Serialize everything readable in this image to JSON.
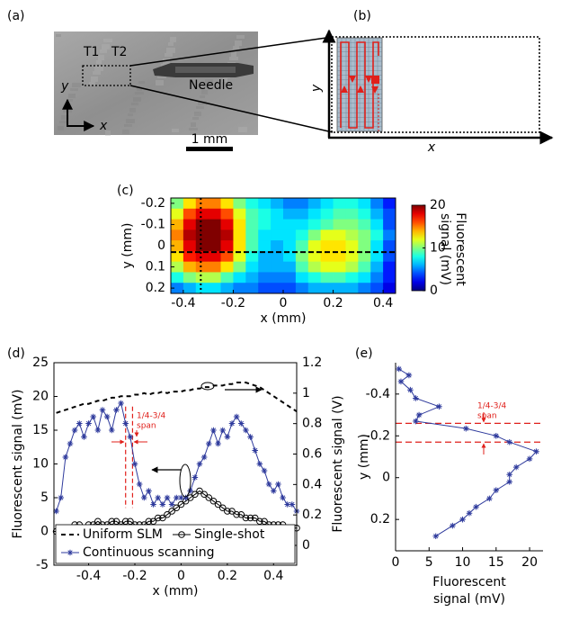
{
  "chart_data": [
    {
      "type": "image",
      "panel": "(a)",
      "labels": [
        "T1",
        "T2",
        "Needle",
        "y",
        "x"
      ],
      "scale_bar": "1 mm"
    },
    {
      "type": "diagram",
      "panel": "(b)",
      "xlabel": "x",
      "ylabel": "y"
    },
    {
      "type": "heatmap",
      "panel": "(c)",
      "xlabel": "x (mm)",
      "ylabel": "y (mm)",
      "x": [
        -0.425,
        -0.375,
        -0.325,
        -0.275,
        -0.225,
        -0.175,
        -0.125,
        -0.075,
        -0.025,
        0.025,
        0.075,
        0.125,
        0.175,
        0.225,
        0.275,
        0.325,
        0.375,
        0.425
      ],
      "y": [
        -0.2,
        -0.15,
        -0.1,
        -0.05,
        0,
        0.05,
        0.1,
        0.15,
        0.2
      ],
      "z": [
        [
          10,
          13,
          15,
          15,
          13,
          10,
          8,
          7,
          6,
          5,
          5,
          6,
          7,
          8,
          8,
          7,
          5,
          3
        ],
        [
          12,
          16,
          18,
          18,
          16,
          12,
          9,
          8,
          7,
          6,
          6,
          7,
          8,
          9,
          9,
          8,
          6,
          4
        ],
        [
          14,
          18,
          20,
          20,
          18,
          13,
          9,
          8,
          7,
          7,
          7,
          8,
          9,
          10,
          10,
          9,
          7,
          4
        ],
        [
          15,
          19,
          20,
          20,
          19,
          13,
          9,
          7,
          7,
          7,
          8,
          10,
          12,
          12,
          11,
          10,
          8,
          5
        ],
        [
          14,
          18,
          20,
          20,
          18,
          13,
          9,
          7,
          6,
          7,
          9,
          12,
          13,
          13,
          12,
          10,
          7,
          4
        ],
        [
          13,
          17,
          18,
          18,
          16,
          12,
          8,
          6,
          6,
          7,
          10,
          12,
          13,
          13,
          12,
          10,
          7,
          4
        ],
        [
          11,
          14,
          15,
          15,
          13,
          10,
          7,
          6,
          6,
          6,
          9,
          11,
          12,
          12,
          11,
          9,
          6,
          3
        ],
        [
          8,
          10,
          11,
          11,
          9,
          7,
          6,
          5,
          5,
          5,
          7,
          8,
          9,
          9,
          8,
          7,
          5,
          3
        ],
        [
          5,
          6,
          7,
          7,
          6,
          5,
          5,
          4,
          4,
          4,
          5,
          6,
          6,
          6,
          6,
          5,
          4,
          2
        ]
      ],
      "xlim": [
        -0.45,
        0.45
      ],
      "ylim": [
        -0.225,
        0.225
      ],
      "y_reversed": true,
      "xticks": [
        -0.4,
        -0.2,
        0,
        0.2,
        0.4
      ],
      "yticks": [
        -0.2,
        -0.1,
        0,
        0.1,
        0.2
      ],
      "colormap": "jet",
      "colorbar": {
        "label": [
          "Fluorescent",
          "signal (mV)"
        ],
        "lim": [
          0,
          20
        ],
        "ticks": [
          0,
          10,
          20
        ]
      },
      "crosshair": {
        "x": -0.33,
        "y": 0.03
      }
    },
    {
      "type": "line",
      "panel": "(d)",
      "xlabel": "x (mm)",
      "ylabel": "Fluorescent signal (mV)",
      "y2label": "Fluorescent signal (V)",
      "x": [
        -0.54,
        -0.52,
        -0.5,
        -0.48,
        -0.46,
        -0.44,
        -0.42,
        -0.4,
        -0.38,
        -0.36,
        -0.34,
        -0.32,
        -0.3,
        -0.28,
        -0.26,
        -0.24,
        -0.22,
        -0.2,
        -0.18,
        -0.16,
        -0.14,
        -0.12,
        -0.1,
        -0.08,
        -0.06,
        -0.04,
        -0.02,
        0,
        0.02,
        0.04,
        0.06,
        0.08,
        0.1,
        0.12,
        0.14,
        0.16,
        0.18,
        0.2,
        0.22,
        0.24,
        0.26,
        0.28,
        0.3,
        0.32,
        0.34,
        0.36,
        0.38,
        0.4,
        0.42,
        0.44,
        0.46,
        0.48,
        0.5
      ],
      "series": [
        {
          "name": "Uniform SLM",
          "color": "#000000",
          "axis": "y2",
          "style": "dashed",
          "values": [
            0.87,
            0.88,
            0.89,
            0.9,
            0.91,
            0.92,
            0.93,
            0.93,
            0.94,
            0.95,
            0.95,
            0.96,
            0.97,
            0.97,
            0.98,
            0.98,
            0.98,
            0.99,
            0.99,
            1.0,
            0.99,
            1.0,
            1.0,
            1.01,
            1.0,
            1.01,
            1.01,
            1.01,
            1.02,
            1.02,
            1.03,
            1.03,
            1.04,
            1.04,
            1.05,
            1.05,
            1.05,
            1.06,
            1.06,
            1.07,
            1.07,
            1.07,
            1.06,
            1.05,
            1.04,
            1.02,
            1.0,
            0.98,
            0.96,
            0.94,
            0.92,
            0.9,
            0.88
          ]
        },
        {
          "name": "Single-shot",
          "color": "#000000",
          "marker": "circle",
          "values": [
            0,
            0,
            0.5,
            0.5,
            1,
            1,
            0.5,
            1,
            1,
            1.5,
            1,
            1,
            1.5,
            1.5,
            1,
            1.5,
            1.5,
            1,
            1,
            1,
            1.5,
            1.5,
            2,
            2,
            2.5,
            3,
            3.5,
            4,
            4.5,
            5,
            5.5,
            6,
            5.5,
            5,
            4.5,
            4,
            3.5,
            3,
            3,
            2.5,
            2.5,
            2,
            2,
            2,
            1.5,
            1.5,
            1,
            1,
            1,
            1,
            0.5,
            0.5,
            0.5
          ]
        },
        {
          "name": "Continuous scanning",
          "color": "#2e3a9c",
          "marker": "star",
          "values": [
            3,
            5,
            11,
            13,
            15,
            16,
            14,
            16,
            17,
            15,
            18,
            17,
            15,
            18,
            19,
            16,
            14,
            10,
            7,
            5,
            6,
            4,
            5,
            4,
            5,
            4,
            5,
            5,
            5,
            6,
            8,
            10,
            11,
            13,
            15,
            13,
            15,
            14,
            16,
            17,
            16,
            15,
            14,
            12,
            10,
            9,
            7,
            6,
            7,
            5,
            4,
            4,
            3
          ]
        }
      ],
      "xlim": [
        -0.55,
        0.5
      ],
      "ylim": [
        -5,
        25
      ],
      "y2lim": [
        -0.13,
        1.2
      ],
      "xticks": [
        -0.4,
        -0.2,
        0,
        0.2,
        0.4
      ],
      "yticks": [
        -5,
        0,
        5,
        10,
        15,
        20,
        25
      ],
      "y2ticks": [
        0,
        0.2,
        0.4,
        0.6,
        0.8,
        1,
        1.2
      ],
      "legend": "lower center",
      "annotation": [
        "1/4-3/4",
        "span"
      ],
      "span_x": [
        -0.24,
        -0.21
      ],
      "annotation_color": "#e0201b"
    },
    {
      "type": "line",
      "panel": "(e)",
      "orientation": "horizontal",
      "xlabel": [
        "Fluorescent",
        "signal (mV)"
      ],
      "ylabel": "y (mm)",
      "y": [
        -0.52,
        -0.49,
        -0.46,
        -0.42,
        -0.38,
        -0.34,
        -0.3,
        -0.27,
        -0.235,
        -0.2,
        -0.17,
        -0.125,
        -0.09,
        -0.05,
        -0.015,
        0.02,
        0.06,
        0.1,
        0.14,
        0.17,
        0.2,
        0.23,
        0.28
      ],
      "series": [
        {
          "color": "#2e3a9c",
          "marker": "star",
          "values": [
            0.5,
            2,
            0.8,
            2.2,
            3,
            6.5,
            3.5,
            3,
            10.5,
            15,
            17,
            21,
            20,
            18,
            17,
            17,
            15,
            14,
            12,
            11,
            10,
            8.5,
            6
          ]
        }
      ],
      "xlim": [
        0,
        22
      ],
      "ylim": [
        -0.55,
        0.35
      ],
      "y_reversed": true,
      "xticks": [
        0,
        5,
        10,
        15,
        20
      ],
      "yticks": [
        -0.4,
        -0.2,
        0,
        0.2
      ],
      "annotation": [
        "1/4-3/4",
        "span"
      ],
      "span_y": [
        -0.26,
        -0.17
      ],
      "annotation_color": "#e0201b"
    }
  ]
}
